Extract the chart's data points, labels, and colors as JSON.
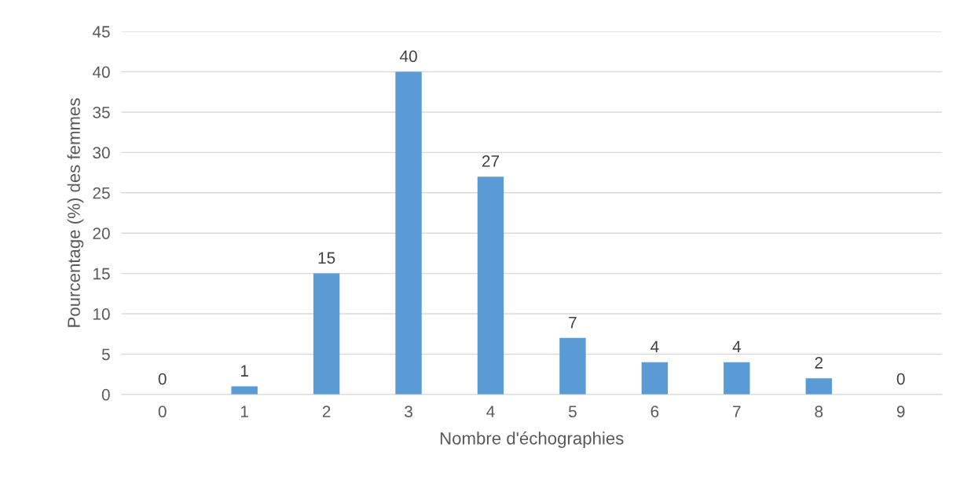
{
  "chart_data": {
    "type": "bar",
    "xlabel": "Nombre d'échographies",
    "ylabel": "Pourcentage (%) des femmes",
    "categories": [
      "0",
      "1",
      "2",
      "3",
      "4",
      "5",
      "6",
      "7",
      "8",
      "9"
    ],
    "values": [
      0,
      1,
      15,
      40,
      27,
      7,
      4,
      4,
      2,
      0
    ],
    "color": "#5b9bd5",
    "ylim": [
      0,
      45
    ],
    "yticks": [
      0,
      5,
      10,
      15,
      20,
      25,
      30,
      35,
      40,
      45
    ],
    "grid": "y",
    "data_labels": true
  }
}
